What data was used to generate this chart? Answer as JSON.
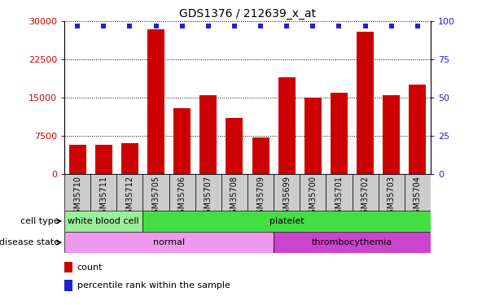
{
  "title": "GDS1376 / 212639_x_at",
  "samples": [
    "GSM35710",
    "GSM35711",
    "GSM35712",
    "GSM35705",
    "GSM35706",
    "GSM35707",
    "GSM35708",
    "GSM35709",
    "GSM35699",
    "GSM35700",
    "GSM35701",
    "GSM35702",
    "GSM35703",
    "GSM35704"
  ],
  "counts": [
    5800,
    5700,
    6100,
    28500,
    13000,
    15500,
    11000,
    7200,
    19000,
    15000,
    16000,
    28000,
    15500,
    17500
  ],
  "percentile_values": [
    97,
    97,
    97,
    97,
    97,
    97,
    97,
    97,
    97,
    97,
    97,
    97,
    97,
    97
  ],
  "ylim_left": [
    0,
    30000
  ],
  "ylim_right": [
    0,
    100
  ],
  "yticks_left": [
    0,
    7500,
    15000,
    22500,
    30000
  ],
  "yticks_right": [
    0,
    25,
    50,
    75,
    100
  ],
  "bar_color": "#cc0000",
  "dot_color": "#2222cc",
  "cell_type_labels": [
    {
      "label": "white blood cell",
      "start": 0,
      "end": 3,
      "color": "#99ee99"
    },
    {
      "label": "platelet",
      "start": 3,
      "end": 14,
      "color": "#44dd44"
    }
  ],
  "disease_state_labels": [
    {
      "label": "normal",
      "start": 0,
      "end": 8,
      "color": "#ee99ee"
    },
    {
      "label": "thrombocythemia",
      "start": 8,
      "end": 14,
      "color": "#cc44cc"
    }
  ],
  "legend_count_label": "count",
  "legend_pct_label": "percentile rank within the sample",
  "plot_bg_color": "#ffffff",
  "tick_bg_color": "#cccccc",
  "grid_color": "#000000"
}
